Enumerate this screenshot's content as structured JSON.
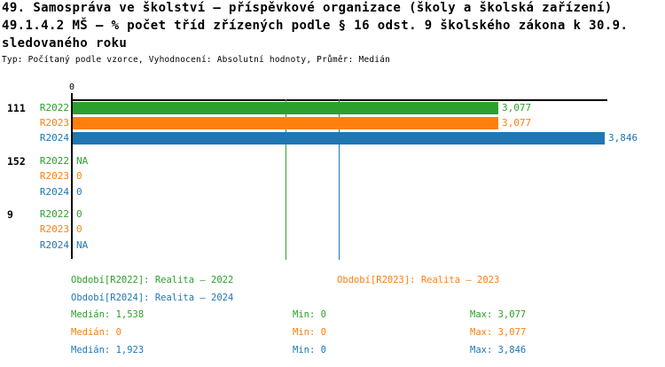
{
  "title": {
    "line1": "49. Samospráva ve školství – příspěvkové organizace (školy a školská zařízení)",
    "line2": "49.1.4.2 MŠ – % počet tříd zřízených podle § 16 odst. 9 školského zákona k 30.9.",
    "line3": "sledovaného roku",
    "meta": "Typ: Počítaný podle vzorce, Vyhodnocení: Absolutní hodnoty, Průměr: Medián"
  },
  "colors": {
    "r2022": "#2ca02c",
    "r2023": "#ff7f0e",
    "r2024": "#1f77b4",
    "axis": "#000000",
    "background": "#ffffff"
  },
  "chart_data": {
    "type": "bar",
    "orientation": "horizontal",
    "grid": false,
    "legend_position": "bottom",
    "categories": [
      "111",
      "152",
      "9"
    ],
    "x_tick_labels": [
      "0"
    ],
    "xlim": [
      0,
      3900
    ],
    "series": [
      {
        "name": "R2022",
        "color": "#2ca02c",
        "values": [
          3077,
          null,
          0
        ],
        "display": [
          "3,077",
          "NA",
          "0"
        ],
        "median": 1538,
        "min": 0,
        "max": 3077
      },
      {
        "name": "R2023",
        "color": "#ff7f0e",
        "values": [
          3077,
          0,
          0
        ],
        "display": [
          "3,077",
          "0",
          "0"
        ],
        "median": 0,
        "min": 0,
        "max": 3077
      },
      {
        "name": "R2024",
        "color": "#1f77b4",
        "values": [
          3846,
          0,
          null
        ],
        "display": [
          "3,846",
          "0",
          "NA"
        ],
        "median": 1923,
        "min": 0,
        "max": 3846
      }
    ],
    "median_reference_lines": [
      {
        "series": "R2022",
        "value": 1538
      },
      {
        "series": "R2024",
        "value": 1923
      }
    ]
  },
  "legend": [
    "Období[R2022]: Realita – 2022",
    "Období[R2023]: Realita – 2023",
    "Období[R2024]: Realita – 2024"
  ],
  "stats": [
    {
      "median": "Medián: 1,538",
      "min": "Min: 0",
      "max": "Max: 3,077"
    },
    {
      "median": "Medián: 0",
      "min": "Min: 0",
      "max": "Max: 3,077"
    },
    {
      "median": "Medián: 1,923",
      "min": "Min: 0",
      "max": "Max: 3,846"
    }
  ]
}
